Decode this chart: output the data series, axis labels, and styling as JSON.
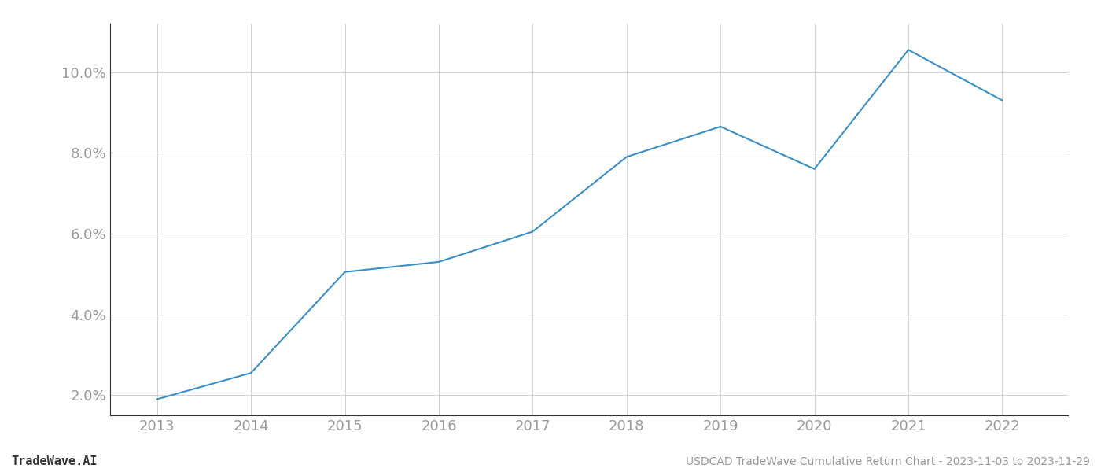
{
  "x_years": [
    2013,
    2014,
    2015,
    2016,
    2017,
    2018,
    2019,
    2020,
    2021,
    2022
  ],
  "y_values": [
    1.9,
    2.55,
    5.05,
    5.3,
    6.05,
    7.9,
    8.65,
    7.6,
    10.55,
    9.3
  ],
  "line_color": "#3a8fc7",
  "line_width": 1.5,
  "background_color": "#ffffff",
  "grid_color": "#cccccc",
  "title_text": "USDCAD TradeWave Cumulative Return Chart - 2023-11-03 to 2023-11-29",
  "watermark_text": "TradeWave.AI",
  "ylim": [
    1.5,
    11.2
  ],
  "yticks": [
    2.0,
    4.0,
    6.0,
    8.0,
    10.0
  ],
  "xticks": [
    2013,
    2014,
    2015,
    2016,
    2017,
    2018,
    2019,
    2020,
    2021,
    2022
  ],
  "tick_label_color": "#999999",
  "spine_color": "#333333",
  "footer_font_size": 10,
  "watermark_color": "#333333",
  "watermark_fontsize": 11,
  "title_color": "#999999",
  "tick_fontsize": 13,
  "xlim_left": 2012.5,
  "xlim_right": 2022.7
}
